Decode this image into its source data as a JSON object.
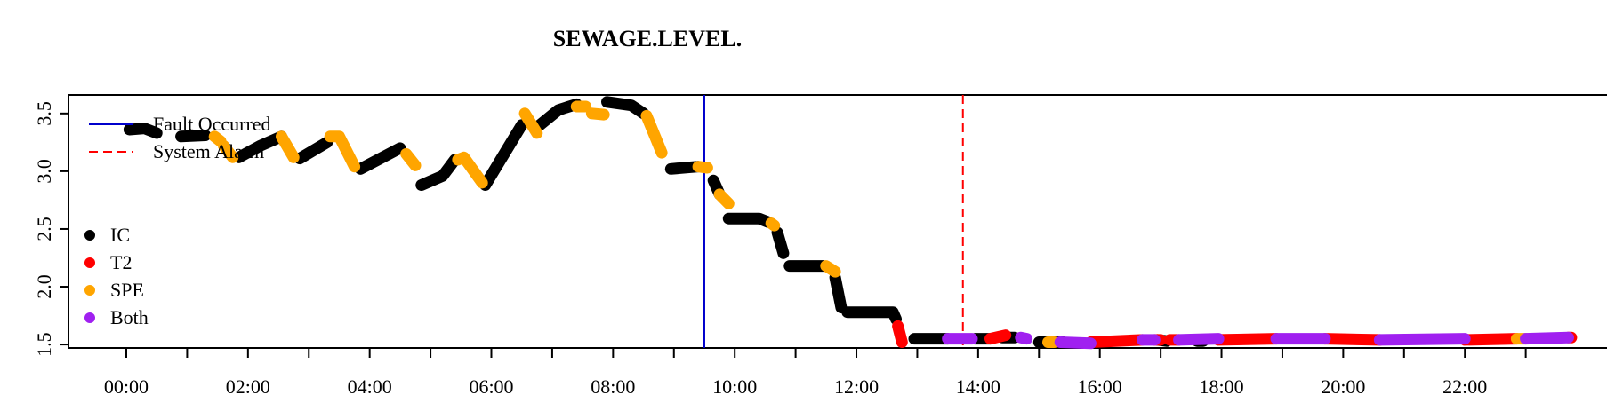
{
  "chart_data": {
    "type": "scatter",
    "title": "SEWAGE.LEVEL.",
    "xlabel": "",
    "ylabel": "",
    "xlim": [
      -0.95,
      24.35
    ],
    "ylim": [
      1.47,
      3.66
    ],
    "x_unit": "hours since 00:00",
    "x_ticks": [
      0,
      1,
      2,
      3,
      4,
      5,
      6,
      7,
      8,
      9,
      10,
      11,
      12,
      13,
      14,
      15,
      16,
      17,
      18,
      19,
      20,
      21,
      22,
      23
    ],
    "x_tick_labels": [
      "00:00",
      "02:00",
      "04:00",
      "06:00",
      "08:00",
      "10:00",
      "12:00",
      "14:00",
      "16:00",
      "18:00",
      "20:00",
      "22:00"
    ],
    "x_tick_label_positions": [
      0,
      2,
      4,
      6,
      8,
      10,
      12,
      14,
      16,
      18,
      20,
      22
    ],
    "y_ticks": [
      1.5,
      2.0,
      2.5,
      3.0,
      3.5
    ],
    "y_tick_labels": [
      "1.5",
      "2.0",
      "2.5",
      "3.0",
      "3.5"
    ],
    "grid": false,
    "vlines": [
      {
        "name": "Fault Occurred",
        "x": 9.5,
        "color": "#0000cc",
        "style": "solid"
      },
      {
        "name": "System Alarm",
        "x": 13.75,
        "color": "#ff0000",
        "style": "dashed"
      }
    ],
    "line_legend": {
      "position": "top-left",
      "entries": [
        {
          "label": "Fault Occurred",
          "color": "#0000cc",
          "style": "solid"
        },
        {
          "label": "System Alarm",
          "color": "#ff0000",
          "style": "dashed"
        }
      ]
    },
    "point_legend": {
      "position": "left",
      "entries": [
        {
          "label": "IC",
          "color": "#000000"
        },
        {
          "label": "T2",
          "color": "#ff0000"
        },
        {
          "label": "SPE",
          "color": "#ffa500"
        },
        {
          "label": "Both",
          "color": "#a020f0"
        }
      ]
    },
    "series": [
      {
        "name": "IC",
        "color": "#000000",
        "segments": [
          [
            [
              0.05,
              3.36
            ],
            [
              0.3,
              3.37
            ],
            [
              0.5,
              3.33
            ]
          ],
          [
            [
              0.9,
              3.3
            ],
            [
              1.3,
              3.31
            ]
          ],
          [
            [
              1.85,
              3.12
            ],
            [
              2.2,
              3.22
            ],
            [
              2.55,
              3.3
            ]
          ],
          [
            [
              2.85,
              3.11
            ],
            [
              3.3,
              3.25
            ]
          ],
          [
            [
              3.85,
              3.02
            ],
            [
              4.5,
              3.2
            ]
          ],
          [
            [
              4.85,
              2.88
            ],
            [
              5.2,
              2.96
            ],
            [
              5.4,
              3.1
            ]
          ],
          [
            [
              5.9,
              2.88
            ],
            [
              6.5,
              3.4
            ]
          ],
          [
            [
              6.75,
              3.38
            ],
            [
              7.1,
              3.53
            ],
            [
              7.4,
              3.58
            ]
          ],
          [
            [
              7.9,
              3.6
            ],
            [
              8.3,
              3.57
            ],
            [
              8.5,
              3.5
            ]
          ],
          [
            [
              8.95,
              3.02
            ],
            [
              9.4,
              3.04
            ]
          ],
          [
            [
              9.65,
              2.92
            ],
            [
              9.75,
              2.8
            ]
          ],
          [
            [
              9.9,
              2.59
            ],
            [
              10.4,
              2.59
            ],
            [
              10.55,
              2.56
            ]
          ],
          [
            [
              10.7,
              2.47
            ],
            [
              10.8,
              2.29
            ]
          ],
          [
            [
              10.9,
              2.18
            ],
            [
              11.45,
              2.18
            ]
          ],
          [
            [
              11.65,
              2.08
            ],
            [
              11.75,
              1.82
            ]
          ],
          [
            [
              11.85,
              1.78
            ],
            [
              12.6,
              1.78
            ],
            [
              12.65,
              1.72
            ]
          ],
          [
            [
              12.95,
              1.55
            ],
            [
              13.5,
              1.55
            ]
          ],
          [
            [
              13.95,
              1.55
            ],
            [
              14.2,
              1.55
            ]
          ],
          [
            [
              14.4,
              1.56
            ],
            [
              14.6,
              1.56
            ]
          ],
          [
            [
              15.0,
              1.52
            ],
            [
              15.4,
              1.52
            ]
          ],
          [
            [
              16.95,
              1.54
            ],
            [
              17.1,
              1.53
            ]
          ],
          [
            [
              17.6,
              1.53
            ],
            [
              17.7,
              1.53
            ]
          ]
        ]
      },
      {
        "name": "T2",
        "color": "#ff0000",
        "segments": [
          [
            [
              12.68,
              1.66
            ],
            [
              12.75,
              1.52
            ]
          ],
          [
            [
              14.2,
              1.55
            ],
            [
              14.45,
              1.58
            ]
          ],
          [
            [
              15.85,
              1.52
            ],
            [
              16.7,
              1.54
            ]
          ],
          [
            [
              16.9,
              1.54
            ],
            [
              17.0,
              1.54
            ]
          ],
          [
            [
              17.15,
              1.54
            ],
            [
              17.3,
              1.54
            ]
          ],
          [
            [
              17.95,
              1.54
            ],
            [
              18.9,
              1.55
            ]
          ],
          [
            [
              19.7,
              1.55
            ],
            [
              20.6,
              1.54
            ]
          ],
          [
            [
              22.0,
              1.54
            ],
            [
              22.85,
              1.55
            ]
          ],
          [
            [
              23.7,
              1.56
            ],
            [
              23.75,
              1.56
            ]
          ]
        ]
      },
      {
        "name": "SPE",
        "color": "#ffa500",
        "segments": [
          [
            [
              1.45,
              3.3
            ],
            [
              1.55,
              3.26
            ]
          ],
          [
            [
              1.6,
              3.22
            ],
            [
              1.75,
              3.12
            ]
          ],
          [
            [
              2.55,
              3.3
            ],
            [
              2.75,
              3.12
            ]
          ],
          [
            [
              3.35,
              3.3
            ],
            [
              3.5,
              3.3
            ],
            [
              3.75,
              3.04
            ]
          ],
          [
            [
              4.6,
              3.15
            ],
            [
              4.75,
              3.05
            ]
          ],
          [
            [
              5.45,
              3.1
            ],
            [
              5.55,
              3.12
            ],
            [
              5.85,
              2.9
            ]
          ],
          [
            [
              6.55,
              3.5
            ],
            [
              6.75,
              3.33
            ]
          ],
          [
            [
              7.4,
              3.56
            ],
            [
              7.55,
              3.56
            ]
          ],
          [
            [
              7.65,
              3.5
            ],
            [
              7.85,
              3.49
            ]
          ],
          [
            [
              8.55,
              3.48
            ],
            [
              8.8,
              3.16
            ]
          ],
          [
            [
              9.4,
              3.04
            ],
            [
              9.55,
              3.03
            ]
          ],
          [
            [
              9.75,
              2.8
            ],
            [
              9.9,
              2.72
            ]
          ],
          [
            [
              10.6,
              2.55
            ],
            [
              10.65,
              2.53
            ]
          ],
          [
            [
              11.5,
              2.18
            ],
            [
              11.65,
              2.13
            ]
          ],
          [
            [
              15.15,
              1.52
            ],
            [
              15.25,
              1.52
            ]
          ],
          [
            [
              22.85,
              1.55
            ],
            [
              23.0,
              1.55
            ]
          ]
        ]
      },
      {
        "name": "Both",
        "color": "#a020f0",
        "segments": [
          [
            [
              13.5,
              1.55
            ],
            [
              13.9,
              1.55
            ]
          ],
          [
            [
              14.7,
              1.56
            ],
            [
              14.8,
              1.55
            ]
          ],
          [
            [
              15.35,
              1.52
            ],
            [
              15.85,
              1.51
            ]
          ],
          [
            [
              16.7,
              1.54
            ],
            [
              16.9,
              1.54
            ]
          ],
          [
            [
              17.3,
              1.54
            ],
            [
              17.95,
              1.55
            ]
          ],
          [
            [
              18.9,
              1.55
            ],
            [
              19.7,
              1.55
            ]
          ],
          [
            [
              20.6,
              1.54
            ],
            [
              22.0,
              1.55
            ]
          ],
          [
            [
              23.0,
              1.55
            ],
            [
              23.7,
              1.56
            ]
          ]
        ]
      }
    ]
  }
}
